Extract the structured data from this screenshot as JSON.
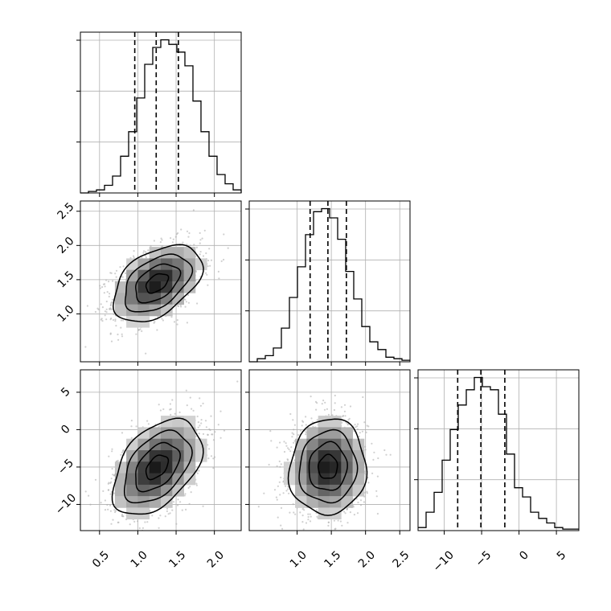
{
  "chart_data": {
    "type": "corner",
    "grid": true,
    "parameters": [
      {
        "name": "",
        "range": [
          0.25,
          2.35
        ],
        "ticks": [
          0.5,
          1.0,
          1.5,
          2.0
        ],
        "tick_labels": [
          "0.5",
          "1.0",
          "1.5",
          "2.0"
        ],
        "quantiles": [
          0.96,
          1.24,
          1.53
        ],
        "hist_bin_start": 0.25,
        "hist_bin_width": 0.105,
        "hist_counts": [
          0,
          1,
          2,
          5,
          11,
          24,
          40,
          62,
          84,
          95,
          100,
          97,
          92,
          83,
          60,
          40,
          24,
          12,
          6,
          2,
          0
        ]
      },
      {
        "name": "",
        "range": [
          0.3,
          2.65
        ],
        "ticks": [
          1.0,
          1.5,
          2.0,
          2.5
        ],
        "tick_labels": [
          "1.0",
          "1.5",
          "2.0",
          "2.5"
        ],
        "quantiles": [
          1.19,
          1.45,
          1.72
        ],
        "hist_bin_start": 0.3,
        "hist_bin_width": 0.1175,
        "hist_counts": [
          0,
          2,
          4,
          9,
          22,
          42,
          62,
          83,
          98,
          100,
          94,
          80,
          59,
          41,
          23,
          13,
          8,
          3,
          2,
          1
        ]
      },
      {
        "name": "",
        "range": [
          -13.5,
          8.0
        ],
        "ticks": [
          -10,
          -5,
          0,
          5
        ],
        "tick_labels": [
          "−10",
          "−5",
          "0",
          "5"
        ],
        "quantiles": [
          -8.2,
          -5.1,
          -1.9
        ],
        "hist_bin_start": -13.5,
        "hist_bin_width": 1.075,
        "hist_counts": [
          2,
          12,
          25,
          46,
          66,
          82,
          92,
          100,
          94,
          92,
          76,
          50,
          28,
          22,
          12,
          8,
          5,
          2,
          1,
          1
        ]
      }
    ],
    "pairs": [
      {
        "x_param": 0,
        "y_param": 1,
        "mean": [
          1.25,
          1.45
        ],
        "sd": [
          0.29,
          0.28
        ],
        "corr": 0.45,
        "y_tick_labels": [
          "1.0",
          "1.5",
          "2.0",
          "2.5"
        ]
      },
      {
        "x_param": 0,
        "y_param": 2,
        "mean": [
          1.25,
          -5.0
        ],
        "sd": [
          0.29,
          3.2
        ],
        "corr": 0.45,
        "y_tick_labels": [
          "−10",
          "−5",
          "0",
          "5"
        ]
      },
      {
        "x_param": 1,
        "y_param": 2,
        "mean": [
          1.45,
          -5.0
        ],
        "sd": [
          0.28,
          3.2
        ],
        "corr": 0.05,
        "y_tick_labels": []
      }
    ],
    "contour_levels_sigma": [
      0.5,
      1.0,
      1.5,
      2.0
    ]
  }
}
